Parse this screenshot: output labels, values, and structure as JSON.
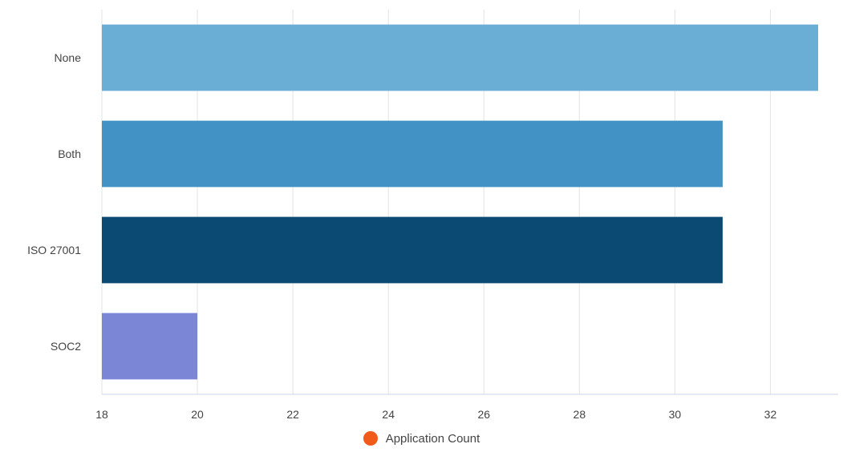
{
  "chart_data": {
    "type": "bar",
    "orientation": "horizontal",
    "categories": [
      "None",
      "Both",
      "ISO 27001",
      "SOC2"
    ],
    "series": [
      {
        "name": "Application Count",
        "values": [
          33,
          31,
          31,
          20
        ]
      }
    ],
    "bar_colors": [
      "#6aaed6",
      "#4292c6",
      "#0b4a72",
      "#7c86d6"
    ],
    "legend_color": "#f05a1a",
    "xlim": [
      18,
      33
    ],
    "xticks": [
      18,
      20,
      22,
      24,
      26,
      28,
      30,
      32
    ],
    "grid": true,
    "legend": "bottom-center",
    "title": "",
    "xlabel": "",
    "ylabel": ""
  }
}
